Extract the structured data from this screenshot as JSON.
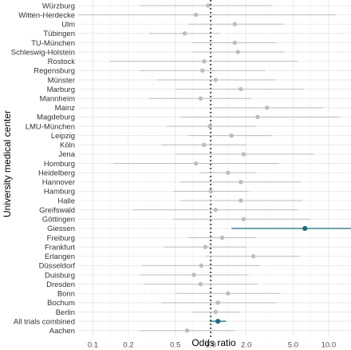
{
  "chart_data": {
    "type": "forest",
    "xlabel": "Odds ratio",
    "ylabel": "University medical center",
    "x_scale": "log",
    "xlim": [
      0.075,
      15.5
    ],
    "x_ticks": [
      0.1,
      0.2,
      0.5,
      1.0,
      2.0,
      5.0,
      10.0
    ],
    "x_tick_labels": [
      "0.1",
      "0.2",
      "0.5",
      "1.0",
      "2.0",
      "5.0",
      "10.0"
    ],
    "reference_line": 1.0,
    "grid": true,
    "colors": {
      "default": "#bdbdbd",
      "highlight": "#1b6f7e",
      "grid": "#e6e6e6"
    },
    "rows": [
      {
        "label": "Würzburg",
        "or": 0.95,
        "lower": 0.25,
        "upper": 3.3,
        "highlight": false
      },
      {
        "label": "Witten-Herdecke",
        "or": 0.75,
        "lower": 0.05,
        "upper": 11.5,
        "highlight": false
      },
      {
        "label": "Ulm",
        "or": 1.6,
        "lower": 0.65,
        "upper": 4.2,
        "highlight": false
      },
      {
        "label": "Tübingen",
        "or": 0.6,
        "lower": 0.3,
        "upper": 1.2,
        "highlight": false
      },
      {
        "label": "TU-München",
        "or": 1.6,
        "lower": 0.7,
        "upper": 3.6,
        "highlight": false
      },
      {
        "label": "Schleswig-Holstein",
        "or": 1.7,
        "lower": 0.7,
        "upper": 4.2,
        "highlight": false
      },
      {
        "label": "Rostock",
        "or": 0.88,
        "lower": 0.14,
        "upper": 5.5,
        "highlight": false
      },
      {
        "label": "Regensburg",
        "or": 0.85,
        "lower": 0.25,
        "upper": 2.9,
        "highlight": false
      },
      {
        "label": "Münster",
        "or": 1.1,
        "lower": 0.35,
        "upper": 3.5,
        "highlight": false
      },
      {
        "label": "Marburg",
        "or": 1.8,
        "lower": 0.5,
        "upper": 6.2,
        "highlight": false
      },
      {
        "label": "Mannheim",
        "or": 0.82,
        "lower": 0.3,
        "upper": 2.2,
        "highlight": false
      },
      {
        "label": "Mainz",
        "or": 3.0,
        "lower": 1.05,
        "upper": 9.0,
        "highlight": false
      },
      {
        "label": "Magdeburg",
        "or": 2.5,
        "lower": 0.55,
        "upper": 12.5,
        "highlight": false
      },
      {
        "label": "LMU-München",
        "or": 0.98,
        "lower": 0.42,
        "upper": 2.4,
        "highlight": false
      },
      {
        "label": "Leipzig",
        "or": 1.5,
        "lower": 0.65,
        "upper": 3.3,
        "highlight": false
      },
      {
        "label": "Köln",
        "or": 0.88,
        "lower": 0.38,
        "upper": 2.0,
        "highlight": false
      },
      {
        "label": "Jena",
        "or": 1.9,
        "lower": 0.5,
        "upper": 7.5,
        "highlight": false
      },
      {
        "label": "Homburg",
        "or": 0.75,
        "lower": 0.15,
        "upper": 3.8,
        "highlight": false
      },
      {
        "label": "Heidelberg",
        "or": 1.4,
        "lower": 0.8,
        "upper": 2.4,
        "highlight": false
      },
      {
        "label": "Hannover",
        "or": 1.8,
        "lower": 0.55,
        "upper": 5.8,
        "highlight": false
      },
      {
        "label": "Hamburg",
        "or": 1.0,
        "lower": 0.48,
        "upper": 2.1,
        "highlight": false
      },
      {
        "label": "Halle",
        "or": 1.8,
        "lower": 0.55,
        "upper": 6.0,
        "highlight": false
      },
      {
        "label": "Greifswald",
        "or": 1.1,
        "lower": 0.22,
        "upper": 5.5,
        "highlight": false
      },
      {
        "label": "Göttingen",
        "or": 1.9,
        "lower": 0.48,
        "upper": 7.0,
        "highlight": false
      },
      {
        "label": "Giessen",
        "or": 6.3,
        "lower": 1.5,
        "upper": 15.5,
        "highlight": true
      },
      {
        "label": "Freiburg",
        "or": 1.25,
        "lower": 0.65,
        "upper": 2.4,
        "highlight": false
      },
      {
        "label": "Frankfurt",
        "or": 0.9,
        "lower": 0.4,
        "upper": 2.0,
        "highlight": false
      },
      {
        "label": "Erlangen",
        "or": 2.3,
        "lower": 0.9,
        "upper": 5.8,
        "highlight": false
      },
      {
        "label": "Düsseldorf",
        "or": 0.83,
        "lower": 0.26,
        "upper": 2.6,
        "highlight": false
      },
      {
        "label": "Duisburg",
        "or": 0.72,
        "lower": 0.25,
        "upper": 2.1,
        "highlight": false
      },
      {
        "label": "Dresden",
        "or": 0.82,
        "lower": 0.27,
        "upper": 2.5,
        "highlight": false
      },
      {
        "label": "Bonn",
        "or": 1.4,
        "lower": 0.5,
        "upper": 3.9,
        "highlight": false
      },
      {
        "label": "Bochum",
        "or": 1.15,
        "lower": 0.38,
        "upper": 3.6,
        "highlight": false
      },
      {
        "label": "Berlin",
        "or": 1.1,
        "lower": 0.7,
        "upper": 1.75,
        "highlight": false
      },
      {
        "label": "All trials combined",
        "or": 1.15,
        "lower": 0.98,
        "upper": 1.35,
        "highlight": true
      },
      {
        "label": "Aachen",
        "or": 0.63,
        "lower": 0.25,
        "upper": 1.6,
        "highlight": false
      }
    ]
  }
}
